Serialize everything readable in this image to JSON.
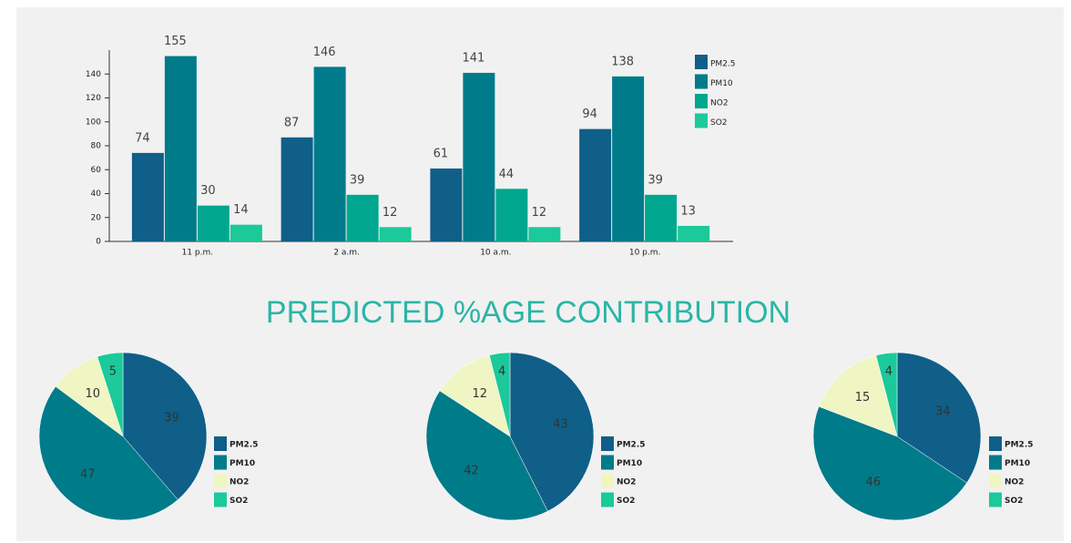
{
  "heading": "PREDICTED %AGE CONTRIBUTION",
  "chart_data": [
    {
      "type": "bar",
      "categories": [
        "11 p.m.",
        "2 a.m.",
        "10 a.m.",
        "10 p.m."
      ],
      "series": [
        {
          "name": "PM2.5",
          "color": "#0f5f88",
          "values": [
            74,
            87,
            61,
            94
          ]
        },
        {
          "name": "PM10",
          "color": "#007b8a",
          "values": [
            155,
            146,
            141,
            138
          ]
        },
        {
          "name": "NO2",
          "color": "#00a78e",
          "values": [
            30,
            39,
            44,
            39
          ]
        },
        {
          "name": "SO2",
          "color": "#1bc99a",
          "values": [
            14,
            12,
            12,
            13
          ]
        }
      ],
      "ylim": [
        0,
        160
      ],
      "yticks": [
        0,
        20,
        40,
        60,
        80,
        100,
        120,
        140
      ],
      "legend": "right"
    },
    {
      "type": "pie",
      "categories": [
        "PM2.5",
        "PM10",
        "NO2",
        "SO2"
      ],
      "values": [
        39,
        47,
        10,
        5
      ],
      "colors": [
        "#0f5f88",
        "#007b8a",
        "#f0f5c4",
        "#1bc99a"
      ],
      "legend": "right"
    },
    {
      "type": "pie",
      "categories": [
        "PM2.5",
        "PM10",
        "NO2",
        "SO2"
      ],
      "values": [
        43,
        42,
        12,
        4
      ],
      "colors": [
        "#0f5f88",
        "#007b8a",
        "#f0f5c4",
        "#1bc99a"
      ],
      "legend": "right"
    },
    {
      "type": "pie",
      "categories": [
        "PM2.5",
        "PM10",
        "NO2",
        "SO2"
      ],
      "values": [
        34,
        46,
        15,
        4
      ],
      "colors": [
        "#0f5f88",
        "#007b8a",
        "#f0f5c4",
        "#1bc99a"
      ],
      "legend": "right"
    }
  ]
}
